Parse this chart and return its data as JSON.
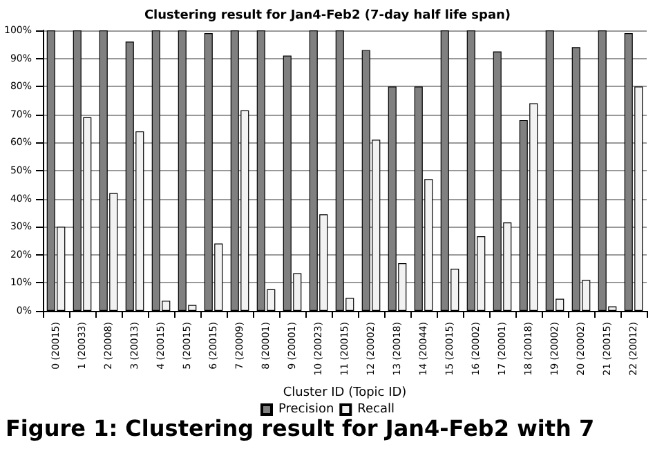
{
  "chart_data": {
    "type": "bar",
    "title": "Clustering result for Jan4-Feb2 (7-day half life span)",
    "xlabel": "Cluster ID (Topic ID)",
    "categories": [
      "0 (20015)",
      "1 (20033)",
      "2 (20008)",
      "3 (20013)",
      "4 (20015)",
      "5 (20015)",
      "6 (20015)",
      "7 (20009)",
      "8 (20001)",
      "9 (20001)",
      "10 (20023)",
      "11 (20015)",
      "12 (20002)",
      "13 (20018)",
      "14 (20044)",
      "15 (20015)",
      "16 (20002)",
      "17 (20001)",
      "18 (20018)",
      "19 (20002)",
      "20 (20002)",
      "21 (20015)",
      "22 (20012)"
    ],
    "series": [
      {
        "name": "Precision",
        "color": "#808080",
        "values": [
          100,
          100,
          100,
          96,
          100,
          100,
          99,
          100,
          100,
          91,
          100,
          100,
          93,
          80,
          80,
          100,
          100,
          92.5,
          68,
          100,
          94,
          100,
          99
        ]
      },
      {
        "name": "Recall",
        "color": "#f2f2f2",
        "values": [
          30,
          69,
          42,
          64,
          3.6,
          2.1,
          24,
          71.5,
          7.7,
          13.4,
          34.4,
          4.6,
          61,
          17,
          47,
          15,
          26.6,
          31.5,
          74,
          4.3,
          11,
          1.6,
          80
        ]
      }
    ],
    "ylim": [
      0,
      100
    ],
    "yticks": [
      {
        "value": 0,
        "label": "0%"
      },
      {
        "value": 10,
        "label": "10%"
      },
      {
        "value": 20,
        "label": "20%"
      },
      {
        "value": 30,
        "label": "30%"
      },
      {
        "value": 40,
        "label": "40%"
      },
      {
        "value": 50,
        "label": "50%"
      },
      {
        "value": 60,
        "label": "60%"
      },
      {
        "value": 70,
        "label": "70%"
      },
      {
        "value": 80,
        "label": "80%"
      },
      {
        "value": 90,
        "label": "90%"
      },
      {
        "value": 100,
        "label": "100%"
      }
    ],
    "grid": "y",
    "legend": "bottom",
    "annotations": [
      "Figure 1: Clustering result for Jan4-Feb2 with 7"
    ]
  }
}
